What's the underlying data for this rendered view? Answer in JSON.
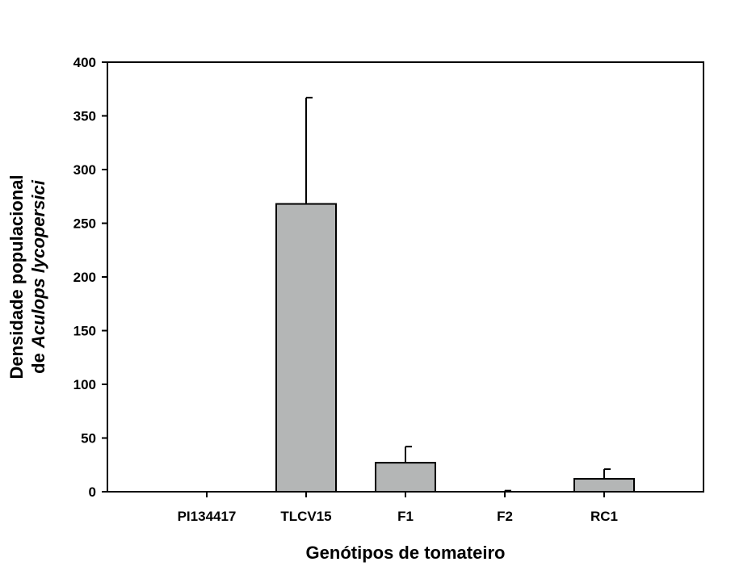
{
  "chart_data": {
    "type": "bar",
    "categories": [
      "PI134417",
      "TLCV15",
      "F1",
      "F2",
      "RC1"
    ],
    "values": [
      0,
      268,
      27,
      0,
      12
    ],
    "errors": [
      0,
      99,
      15,
      1,
      9
    ],
    "xlabel": "Genótipos de tomateiro",
    "ylabel_line1": "Densidade populacional",
    "ylabel_line2_prefix": "de ",
    "ylabel_line2_italic": "Aculops lycopersici",
    "ylim": [
      0,
      400
    ],
    "yticks": [
      0,
      50,
      100,
      150,
      200,
      250,
      300,
      350,
      400
    ],
    "bar_color": "#b4b6b6",
    "grid": false,
    "legend": "none"
  }
}
